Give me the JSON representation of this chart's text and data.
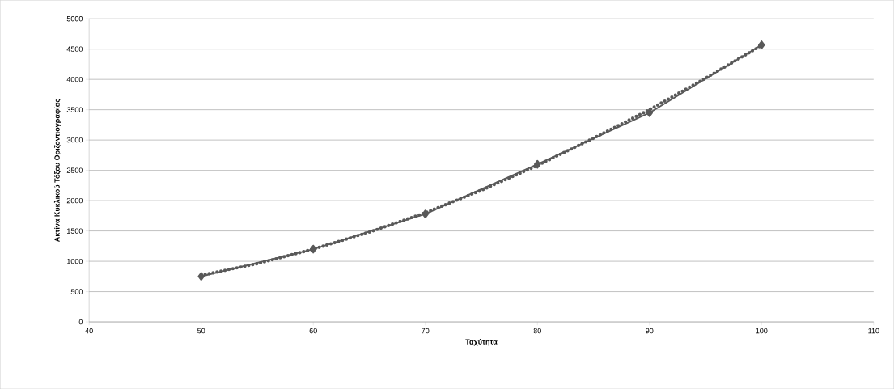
{
  "chart_data": {
    "type": "line",
    "xlabel": "Ταχύτητα",
    "ylabel": "Ακτίνα Κυκλικού Τόξου Οριζοντιογραφίας",
    "xlim": [
      40,
      110
    ],
    "xticks": [
      40,
      50,
      60,
      70,
      80,
      90,
      100,
      110
    ],
    "ylim": [
      0,
      5000
    ],
    "yticks": [
      0,
      500,
      1000,
      1500,
      2000,
      2500,
      3000,
      3500,
      4000,
      4500,
      5000
    ],
    "grid": "y",
    "series": [
      {
        "color": "#595959",
        "marker": "diamond",
        "line_style": "solid",
        "x": [
          50,
          60,
          70,
          80,
          90,
          100
        ],
        "values": [
          750,
          1200,
          1780,
          2600,
          3450,
          4570
        ]
      },
      {
        "color": "#595959",
        "marker": "none",
        "line_style": "dotted",
        "x": [
          50,
          55,
          60,
          65,
          70,
          75,
          80,
          85,
          90,
          95,
          100
        ],
        "values": [
          770,
          960,
          1200,
          1480,
          1800,
          2170,
          2580,
          3030,
          3500,
          4020,
          4560
        ]
      }
    ]
  }
}
